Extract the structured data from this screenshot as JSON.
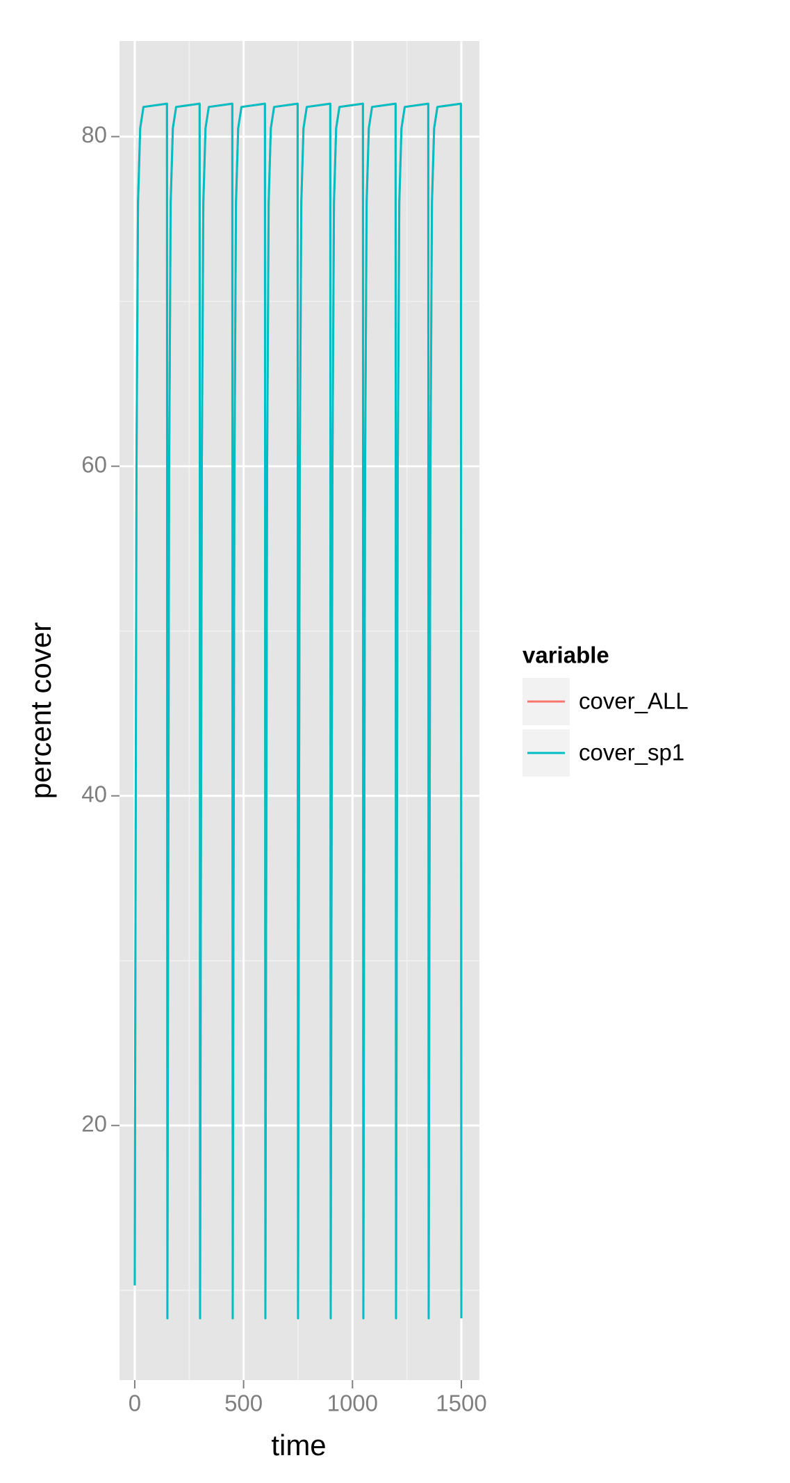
{
  "chart_data": {
    "type": "line",
    "x_label": "time",
    "y_label": "percent cover",
    "x": [
      0,
      3,
      8,
      15,
      25,
      40,
      148,
      150,
      153,
      158,
      165,
      175,
      190,
      298,
      300,
      303,
      308,
      315,
      325,
      340,
      448,
      450,
      453,
      458,
      465,
      475,
      490,
      598,
      600,
      603,
      608,
      615,
      625,
      640,
      748,
      750,
      753,
      758,
      765,
      775,
      790,
      898,
      900,
      903,
      908,
      915,
      925,
      940,
      1048,
      1050,
      1053,
      1058,
      1065,
      1075,
      1090,
      1198,
      1200,
      1203,
      1208,
      1215,
      1225,
      1240,
      1348,
      1350,
      1353,
      1358,
      1365,
      1375,
      1390,
      1498,
      1500
    ],
    "series": [
      {
        "name": "cover_ALL",
        "color": "#F8766D",
        "values": [
          10.3,
          30,
          60,
          76,
          80.5,
          81.8,
          82,
          8.3,
          30,
          60,
          76,
          80.5,
          81.8,
          82,
          8.3,
          30,
          60,
          76,
          80.5,
          81.8,
          82,
          8.3,
          30,
          60,
          76,
          80.5,
          81.8,
          82,
          8.3,
          30,
          60,
          76,
          80.5,
          81.8,
          82,
          8.3,
          30,
          60,
          76,
          80.5,
          81.8,
          82,
          8.3,
          30,
          60,
          76,
          80.5,
          81.8,
          82,
          8.3,
          30,
          60,
          76,
          80.5,
          81.8,
          82,
          8.3,
          30,
          60,
          76,
          80.5,
          81.8,
          82,
          8.3,
          30,
          60,
          76,
          80.5,
          81.8,
          82,
          8.3
        ]
      },
      {
        "name": "cover_sp1",
        "color": "#00BFC4",
        "values": [
          10.3,
          30,
          60,
          76,
          80.5,
          81.8,
          82,
          8.3,
          30,
          60,
          76,
          80.5,
          81.8,
          82,
          8.3,
          30,
          60,
          76,
          80.5,
          81.8,
          82,
          8.3,
          30,
          60,
          76,
          80.5,
          81.8,
          82,
          8.3,
          30,
          60,
          76,
          80.5,
          81.8,
          82,
          8.3,
          30,
          60,
          76,
          80.5,
          81.8,
          82,
          8.3,
          30,
          60,
          76,
          80.5,
          81.8,
          82,
          8.3,
          30,
          60,
          76,
          80.5,
          81.8,
          82,
          8.3,
          30,
          60,
          76,
          80.5,
          81.8,
          82,
          8.3,
          30,
          60,
          76,
          80.5,
          81.8,
          82,
          8.3
        ]
      }
    ],
    "legend_title": "variable",
    "xlim": [
      -70,
      1583
    ],
    "ylim": [
      4.55,
      85.8
    ],
    "xticks": [
      0,
      500,
      1000,
      1500
    ],
    "yticks": [
      20,
      40,
      60,
      80
    ],
    "minor_xticks": [
      250,
      750,
      1250
    ],
    "minor_yticks": [
      10,
      30,
      50,
      70
    ],
    "grid": true,
    "legend_position": "right"
  }
}
